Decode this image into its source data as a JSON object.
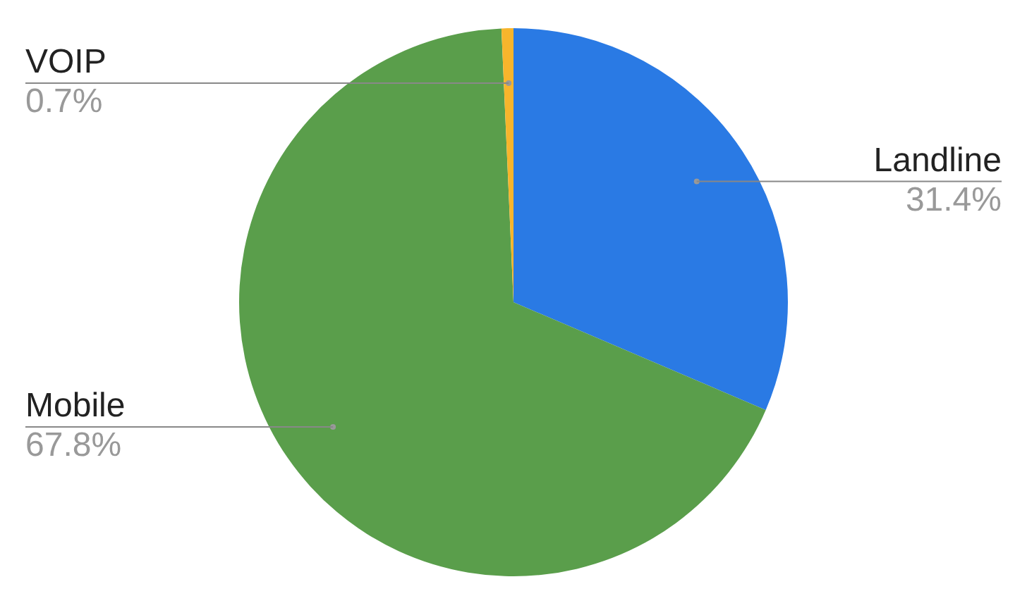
{
  "chart_data": {
    "type": "pie",
    "categories": [
      "Landline",
      "Mobile",
      "VOIP"
    ],
    "values": [
      31.4,
      67.8,
      0.7
    ],
    "colors": [
      "#2a7ae4",
      "#5a9e4b",
      "#f7b52c"
    ],
    "value_labels": [
      "31.4%",
      "67.8%",
      "0.7%"
    ],
    "legend": false
  }
}
